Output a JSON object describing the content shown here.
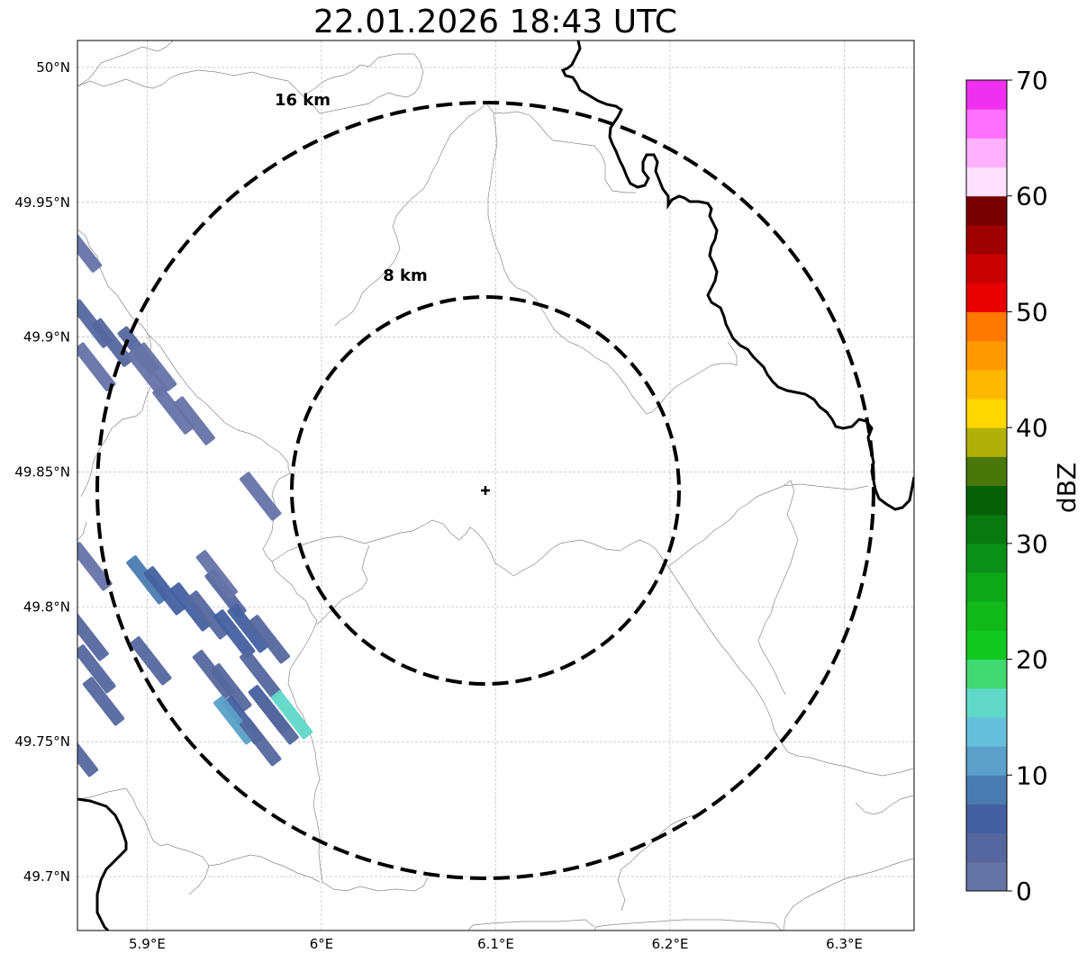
{
  "title": "22.01.2026 18:43 UTC",
  "rings": [
    {
      "radius_km": 16,
      "label": "16 km"
    },
    {
      "radius_km": 8,
      "label": "8 km"
    }
  ],
  "center": {
    "lon": 6.095,
    "lat": 49.843
  },
  "axes": {
    "lon_range": [
      5.86,
      6.34
    ],
    "lat_range": [
      49.68,
      50.01
    ],
    "lon_ticks": [
      5.9,
      6.0,
      6.1,
      6.2,
      6.3
    ],
    "lon_tick_labels": [
      "5.9°E",
      "6°E",
      "6.1°E",
      "6.2°E",
      "6.3°E"
    ],
    "lat_ticks": [
      49.7,
      49.75,
      49.8,
      49.85,
      49.9,
      49.95,
      50.0
    ],
    "lat_tick_labels": [
      "49.7°N",
      "49.75°N",
      "49.8°N",
      "49.85°N",
      "49.9°N",
      "49.95°N",
      "50°N"
    ],
    "grid": true
  },
  "colorbar": {
    "label": "dBZ",
    "min": 0,
    "max": 70,
    "step": 5,
    "tick_values": [
      0,
      10,
      20,
      30,
      40,
      50,
      60,
      70
    ],
    "tick_labels": [
      "0",
      "10",
      "20",
      "30",
      "40",
      "50",
      "60",
      "70"
    ],
    "colors": [
      "#6673a6",
      "#55679e",
      "#4560a0",
      "#4a7bb0",
      "#5aa0c8",
      "#66c0dc",
      "#60d8c8",
      "#40d870",
      "#10c820",
      "#10b818",
      "#0ca818",
      "#0a9018",
      "#087810",
      "#066008",
      "#4a7808",
      "#b0b008",
      "#ffd800",
      "#ffb800",
      "#ff9800",
      "#ff7800",
      "#e80000",
      "#c80000",
      "#a00000",
      "#780000",
      "#ffe0ff",
      "#ffb0ff",
      "#ff70ff",
      "#f030f0"
    ]
  },
  "chart_data": {
    "type": "heatmap",
    "title": "22.01.2026 18:43 UTC",
    "xlabel": "",
    "ylabel": "",
    "xlim": [
      5.86,
      6.34
    ],
    "ylim": [
      49.68,
      50.01
    ],
    "value_label": "dBZ",
    "echoes": [
      {
        "lon": 5.862,
        "lat": 49.933,
        "dbz": 2
      },
      {
        "lon": 5.868,
        "lat": 49.905,
        "dbz": 4
      },
      {
        "lon": 5.88,
        "lat": 49.898,
        "dbz": 3
      },
      {
        "lon": 5.895,
        "lat": 49.895,
        "dbz": 3
      },
      {
        "lon": 5.87,
        "lat": 49.889,
        "dbz": 2
      },
      {
        "lon": 5.9,
        "lat": 49.887,
        "dbz": 2
      },
      {
        "lon": 5.905,
        "lat": 49.889,
        "dbz": 2
      },
      {
        "lon": 5.915,
        "lat": 49.873,
        "dbz": 2
      },
      {
        "lon": 5.927,
        "lat": 49.869,
        "dbz": 2
      },
      {
        "lon": 5.965,
        "lat": 49.841,
        "dbz": 2
      },
      {
        "lon": 5.868,
        "lat": 49.815,
        "dbz": 2
      },
      {
        "lon": 5.866,
        "lat": 49.789,
        "dbz": 4
      },
      {
        "lon": 5.87,
        "lat": 49.777,
        "dbz": 3
      },
      {
        "lon": 5.875,
        "lat": 49.765,
        "dbz": 3
      },
      {
        "lon": 5.86,
        "lat": 49.746,
        "dbz": 3
      },
      {
        "lon": 5.9,
        "lat": 49.81,
        "dbz": 8
      },
      {
        "lon": 5.91,
        "lat": 49.806,
        "dbz": 5
      },
      {
        "lon": 5.925,
        "lat": 49.8,
        "dbz": 6
      },
      {
        "lon": 5.935,
        "lat": 49.797,
        "dbz": 4
      },
      {
        "lon": 5.945,
        "lat": 49.805,
        "dbz": 3
      },
      {
        "lon": 5.94,
        "lat": 49.812,
        "dbz": 2
      },
      {
        "lon": 5.95,
        "lat": 49.79,
        "dbz": 6
      },
      {
        "lon": 5.958,
        "lat": 49.792,
        "dbz": 5
      },
      {
        "lon": 5.97,
        "lat": 49.788,
        "dbz": 3
      },
      {
        "lon": 5.965,
        "lat": 49.775,
        "dbz": 3
      },
      {
        "lon": 5.948,
        "lat": 49.77,
        "dbz": 4
      },
      {
        "lon": 5.938,
        "lat": 49.775,
        "dbz": 3
      },
      {
        "lon": 5.955,
        "lat": 49.758,
        "dbz": 6
      },
      {
        "lon": 5.95,
        "lat": 49.758,
        "dbz": 10
      },
      {
        "lon": 5.97,
        "lat": 49.762,
        "dbz": 5
      },
      {
        "lon": 5.965,
        "lat": 49.75,
        "dbz": 4
      },
      {
        "lon": 5.975,
        "lat": 49.758,
        "dbz": 3
      },
      {
        "lon": 5.983,
        "lat": 49.76,
        "dbz": 15
      },
      {
        "lon": 5.902,
        "lat": 49.78,
        "dbz": 4
      }
    ]
  }
}
